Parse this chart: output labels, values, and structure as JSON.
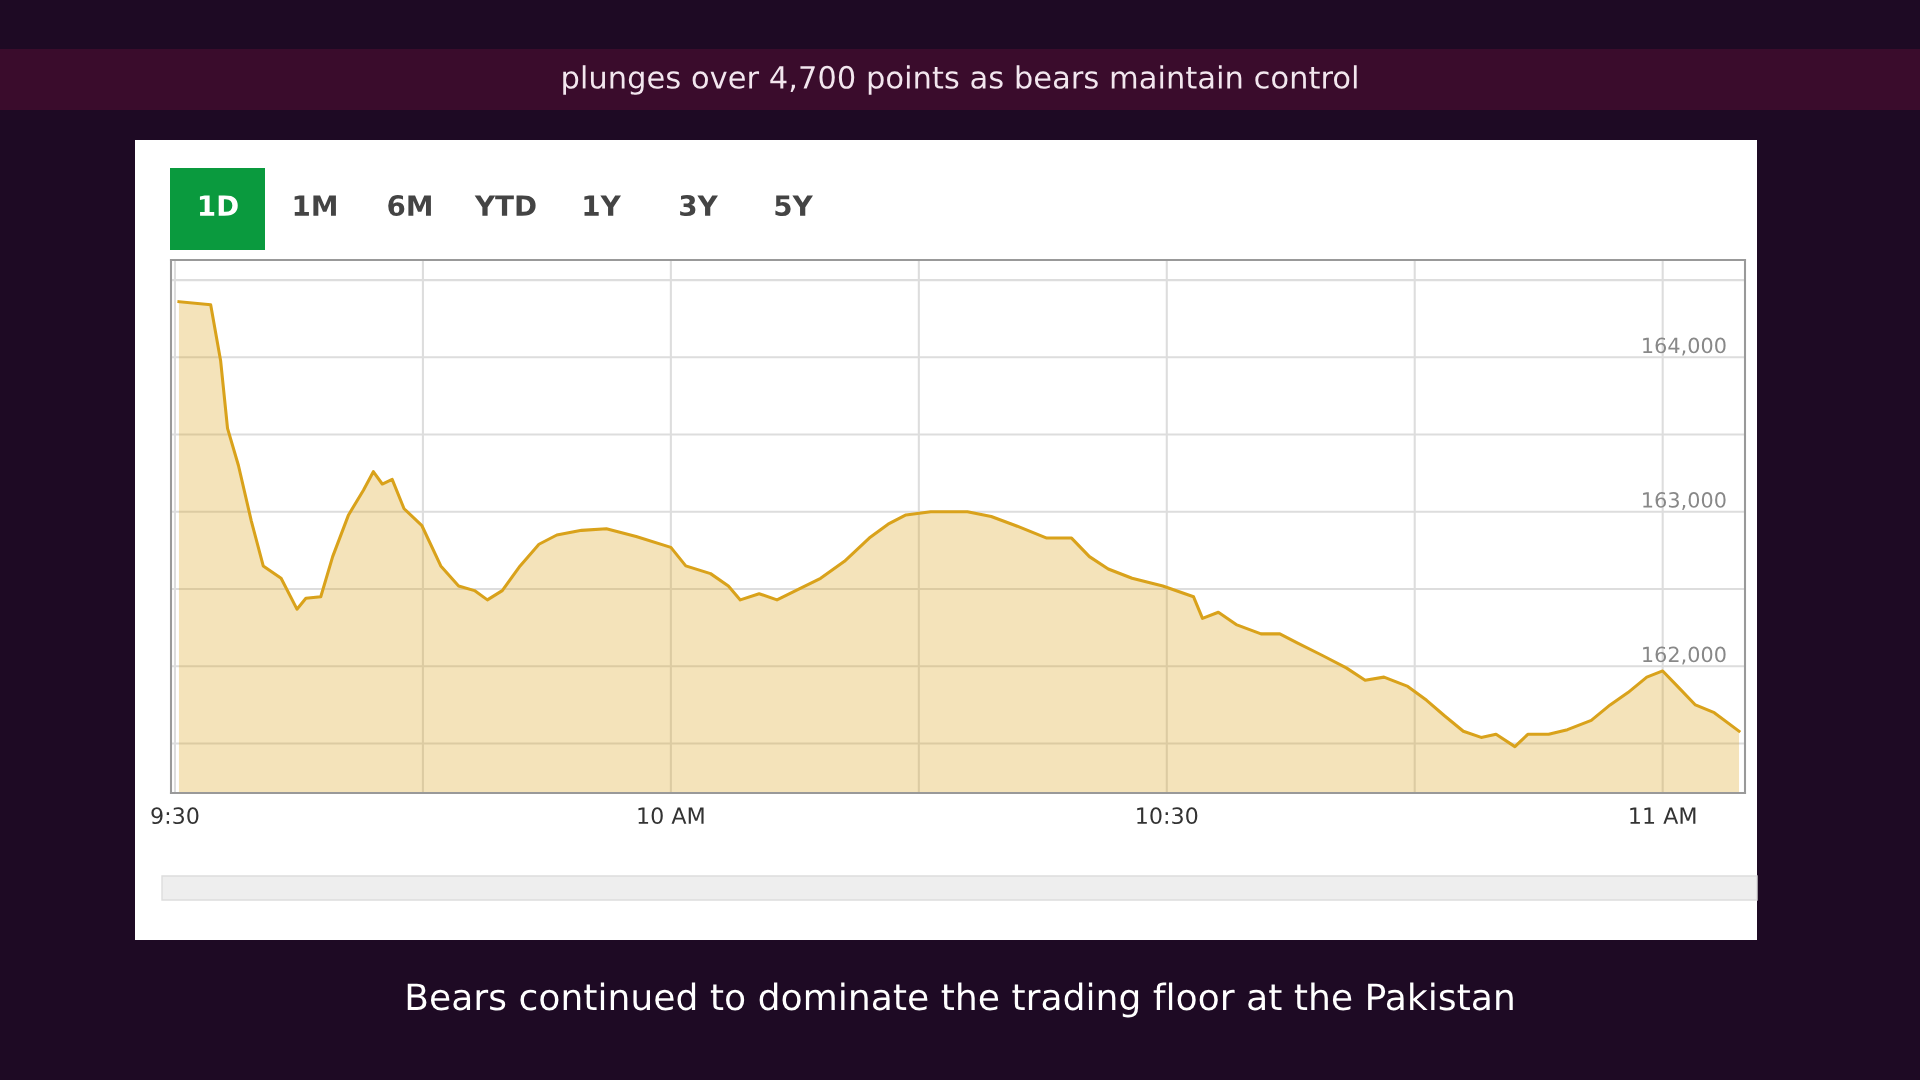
{
  "chart_data": {
    "type": "area",
    "title": "plunges over 4,700 points as bears maintain control",
    "annotations": [
      "1D",
      "1M",
      "6M",
      "YTD",
      "1Y",
      "3Y",
      "5Y",
      "Bears continued to dominate the trading floor at the Pakistan"
    ],
    "x": [
      9.504,
      9.536,
      9.546,
      9.553,
      9.564,
      9.577,
      9.589,
      9.607,
      9.623,
      9.632,
      9.647,
      9.659,
      9.675,
      9.69,
      9.7,
      9.709,
      9.719,
      9.731,
      9.749,
      9.768,
      9.786,
      9.802,
      9.815,
      9.83,
      9.848,
      9.867,
      9.885,
      9.91,
      9.935,
      9.965,
      10.0,
      10.015,
      10.04,
      10.058,
      10.07,
      10.089,
      10.107,
      10.132,
      10.151,
      10.175,
      10.2,
      10.219,
      10.237,
      10.262,
      10.299,
      10.323,
      10.348,
      10.379,
      10.404,
      10.422,
      10.441,
      10.465,
      10.496,
      10.527,
      10.536,
      10.552,
      10.57,
      10.595,
      10.614,
      10.632,
      10.657,
      10.681,
      10.7,
      10.719,
      10.743,
      10.762,
      10.78,
      10.799,
      10.817,
      10.832,
      10.851,
      10.864,
      10.885,
      10.904,
      10.928,
      10.947,
      10.965,
      10.984,
      11.0,
      11.015,
      11.033,
      11.052,
      11.077
    ],
    "series": [
      {
        "color": "#d9a21b",
        "values": [
          164360,
          164340,
          163980,
          163540,
          163300,
          162940,
          162650,
          162570,
          162370,
          162440,
          162450,
          162710,
          162980,
          163140,
          163260,
          163180,
          163210,
          163020,
          162910,
          162650,
          162520,
          162490,
          162430,
          162490,
          162650,
          162790,
          162850,
          162880,
          162890,
          162840,
          162770,
          162650,
          162600,
          162520,
          162430,
          162470,
          162430,
          162510,
          162570,
          162680,
          162830,
          162920,
          162980,
          163000,
          163000,
          162970,
          162910,
          162830,
          162830,
          162710,
          162630,
          162570,
          162520,
          162450,
          162310,
          162350,
          162270,
          162210,
          162210,
          162150,
          162070,
          161990,
          161910,
          161930,
          161870,
          161780,
          161680,
          161580,
          161540,
          161560,
          161480,
          161560,
          161560,
          161590,
          161650,
          161750,
          161830,
          161930,
          161970,
          161870,
          161750,
          161700,
          161580
        ]
      }
    ],
    "xlim": [
      9.496,
      11.083
    ],
    "xticks": [
      {
        "value": 9.5,
        "label": "9:30"
      },
      {
        "value": 9.75,
        "label": null
      },
      {
        "value": 10,
        "label": "10 AM"
      },
      {
        "value": 10.25,
        "label": null
      },
      {
        "value": 10.5,
        "label": "10:30"
      },
      {
        "value": 10.75,
        "label": null
      },
      {
        "value": 11,
        "label": "11 AM"
      }
    ],
    "ylim": [
      161180,
      164630
    ],
    "yticks": [
      {
        "value": 161500,
        "label": null
      },
      {
        "value": 162000,
        "label": "162,000"
      },
      {
        "value": 162500,
        "label": null
      },
      {
        "value": 163000,
        "label": "163,000"
      },
      {
        "value": 163500,
        "label": null
      },
      {
        "value": 164000,
        "label": "164,000"
      },
      {
        "value": 164500,
        "label": null
      }
    ],
    "grid": true,
    "legend": false
  }
}
